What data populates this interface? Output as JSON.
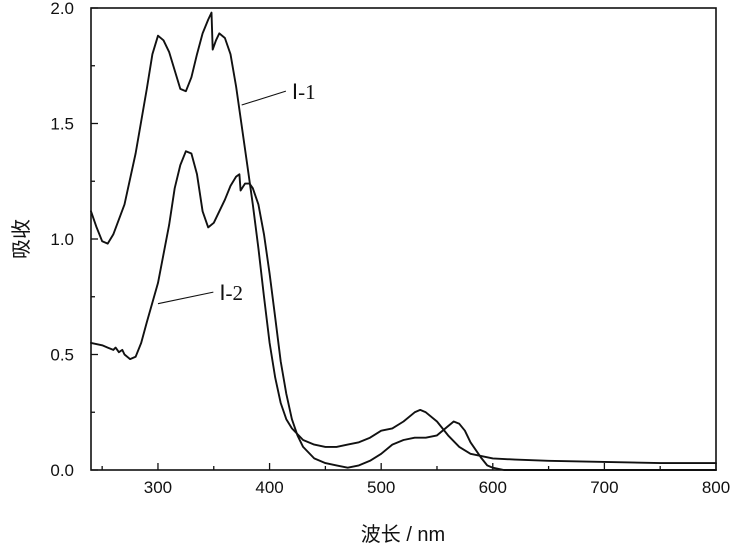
{
  "chart_data": {
    "type": "line",
    "title": "",
    "xlabel": "波长 / nm",
    "ylabel": "吸收",
    "xlim": [
      240,
      800
    ],
    "ylim": [
      0,
      2.0
    ],
    "x_ticks": [
      "300",
      "400",
      "500",
      "600",
      "700",
      "800"
    ],
    "y_ticks": [
      "0.0",
      "0.5",
      "1.0",
      "1.5",
      "2.0"
    ],
    "grid": false,
    "legend": "none",
    "line_color": "#111111",
    "series": [
      {
        "points": [
          [
            240,
            1.12
          ],
          [
            245,
            1.05
          ],
          [
            250,
            0.99
          ],
          [
            255,
            0.98
          ],
          [
            260,
            1.02
          ],
          [
            270,
            1.15
          ],
          [
            280,
            1.37
          ],
          [
            290,
            1.65
          ],
          [
            295,
            1.8
          ],
          [
            300,
            1.88
          ],
          [
            305,
            1.86
          ],
          [
            310,
            1.81
          ],
          [
            315,
            1.73
          ],
          [
            320,
            1.65
          ],
          [
            325,
            1.64
          ],
          [
            330,
            1.7
          ],
          [
            335,
            1.8
          ],
          [
            340,
            1.89
          ],
          [
            345,
            1.95
          ],
          [
            348,
            1.98
          ],
          [
            349,
            1.82
          ],
          [
            352,
            1.86
          ],
          [
            355,
            1.89
          ],
          [
            360,
            1.87
          ],
          [
            365,
            1.8
          ],
          [
            370,
            1.66
          ],
          [
            375,
            1.49
          ],
          [
            380,
            1.32
          ],
          [
            385,
            1.15
          ],
          [
            390,
            0.96
          ],
          [
            395,
            0.75
          ],
          [
            400,
            0.55
          ],
          [
            405,
            0.4
          ],
          [
            410,
            0.29
          ],
          [
            415,
            0.22
          ],
          [
            420,
            0.18
          ],
          [
            430,
            0.13
          ],
          [
            440,
            0.11
          ],
          [
            450,
            0.1
          ],
          [
            460,
            0.1
          ],
          [
            470,
            0.11
          ],
          [
            480,
            0.12
          ],
          [
            490,
            0.14
          ],
          [
            500,
            0.17
          ],
          [
            510,
            0.18
          ],
          [
            520,
            0.21
          ],
          [
            530,
            0.25
          ],
          [
            535,
            0.26
          ],
          [
            540,
            0.25
          ],
          [
            550,
            0.21
          ],
          [
            560,
            0.15
          ],
          [
            570,
            0.1
          ],
          [
            580,
            0.07
          ],
          [
            600,
            0.05
          ],
          [
            620,
            0.045
          ],
          [
            650,
            0.04
          ],
          [
            700,
            0.035
          ],
          [
            750,
            0.03
          ],
          [
            800,
            0.03
          ]
        ]
      },
      {
        "points": [
          [
            240,
            0.55
          ],
          [
            250,
            0.54
          ],
          [
            255,
            0.53
          ],
          [
            260,
            0.52
          ],
          [
            262,
            0.53
          ],
          [
            265,
            0.51
          ],
          [
            268,
            0.52
          ],
          [
            270,
            0.5
          ],
          [
            275,
            0.48
          ],
          [
            280,
            0.49
          ],
          [
            285,
            0.55
          ],
          [
            290,
            0.64
          ],
          [
            300,
            0.81
          ],
          [
            310,
            1.06
          ],
          [
            315,
            1.22
          ],
          [
            320,
            1.32
          ],
          [
            325,
            1.38
          ],
          [
            330,
            1.37
          ],
          [
            335,
            1.28
          ],
          [
            340,
            1.12
          ],
          [
            345,
            1.05
          ],
          [
            350,
            1.07
          ],
          [
            360,
            1.17
          ],
          [
            365,
            1.23
          ],
          [
            370,
            1.27
          ],
          [
            373,
            1.28
          ],
          [
            374,
            1.21
          ],
          [
            378,
            1.24
          ],
          [
            382,
            1.24
          ],
          [
            385,
            1.22
          ],
          [
            390,
            1.15
          ],
          [
            395,
            1.02
          ],
          [
            400,
            0.85
          ],
          [
            405,
            0.66
          ],
          [
            410,
            0.47
          ],
          [
            415,
            0.33
          ],
          [
            420,
            0.22
          ],
          [
            425,
            0.15
          ],
          [
            430,
            0.1
          ],
          [
            440,
            0.05
          ],
          [
            450,
            0.03
          ],
          [
            460,
            0.02
          ],
          [
            470,
            0.01
          ],
          [
            480,
            0.02
          ],
          [
            490,
            0.04
          ],
          [
            500,
            0.07
          ],
          [
            510,
            0.11
          ],
          [
            520,
            0.13
          ],
          [
            530,
            0.14
          ],
          [
            540,
            0.14
          ],
          [
            550,
            0.15
          ],
          [
            560,
            0.19
          ],
          [
            565,
            0.21
          ],
          [
            570,
            0.2
          ],
          [
            575,
            0.17
          ],
          [
            580,
            0.12
          ],
          [
            590,
            0.05
          ],
          [
            595,
            0.02
          ],
          [
            600,
            0.01
          ],
          [
            610,
            0.0
          ],
          [
            650,
            0.0
          ],
          [
            700,
            0.0
          ],
          [
            800,
            0.0
          ]
        ]
      }
    ],
    "annotations": [
      {
        "text": "Ⅰ-1",
        "point_x": 375,
        "point_y": 1.58,
        "label_x": 420,
        "label_y": 1.64
      },
      {
        "text": "Ⅰ-2",
        "point_x": 300,
        "point_y": 0.72,
        "label_x": 355,
        "label_y": 0.77
      }
    ]
  }
}
